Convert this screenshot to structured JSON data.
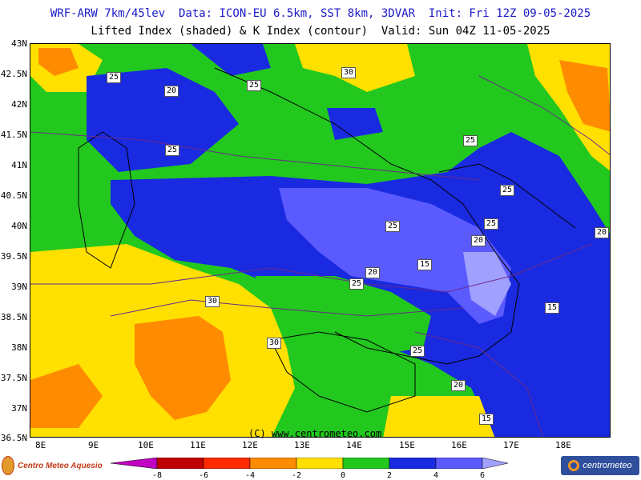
{
  "header": {
    "line1": "WRF-ARW 7km/45lev  Data: ICON-EU 6.5km, SST 8km, 3DVAR  Init: Fri 12Z 09-05-2025",
    "line2": "Lifted Index (shaded) & K Index (contour)  Valid: Sun 04Z 11-05-2025"
  },
  "axes": {
    "lat_labels": [
      "43N",
      "42.5N",
      "42N",
      "41.5N",
      "41N",
      "40.5N",
      "40N",
      "39.5N",
      "39N",
      "38.5N",
      "38N",
      "37.5N",
      "37N",
      "36.5N"
    ],
    "lon_labels": [
      "8E",
      "9E",
      "10E",
      "11E",
      "12E",
      "13E",
      "14E",
      "15E",
      "16E",
      "17E",
      "18E"
    ]
  },
  "contour_labels": [
    "25",
    "20",
    "30",
    "25",
    "25",
    "25",
    "25",
    "25",
    "20",
    "20",
    "25",
    "15",
    "20",
    "25",
    "15",
    "30",
    "30",
    "25",
    "20",
    "15"
  ],
  "copyright": "(C) www.centrometeo.com",
  "colorbar": {
    "ticks": [
      "-8",
      "-6",
      "-4",
      "-2",
      "0",
      "2",
      "4",
      "6"
    ],
    "colors": [
      "#c000c0",
      "#c00000",
      "#ff2a00",
      "#ff8c00",
      "#ffe000",
      "#22c81e",
      "#1a2ae0",
      "#5a5aff",
      "#a0a0ff"
    ]
  },
  "logos": {
    "left": "Centro Meteo Aquesio",
    "right": "centrometeo"
  }
}
